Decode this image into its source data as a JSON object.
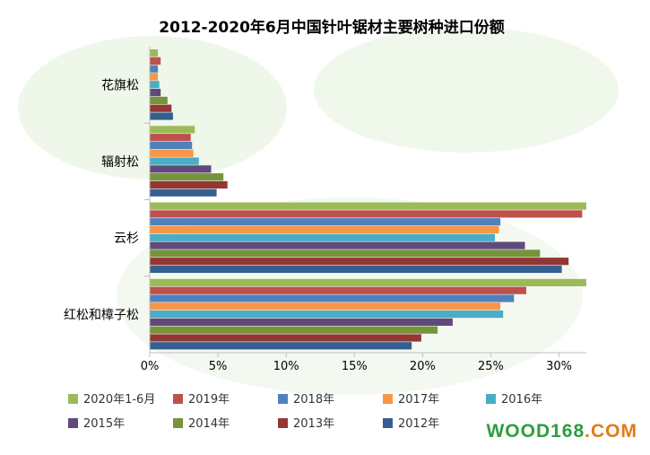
{
  "chart_data": {
    "type": "bar",
    "orientation": "horizontal",
    "title": "2012-2020年6月中国针叶锯材主要树种进口份额",
    "categories": [
      "花旗松",
      "辐射松",
      "云杉",
      "红松和樟子松"
    ],
    "xlim": [
      0,
      0.32
    ],
    "xticks": [
      "0%",
      "5%",
      "10%",
      "15%",
      "20%",
      "25%",
      "30%"
    ],
    "xtick_values": [
      0,
      0.05,
      0.1,
      0.15,
      0.2,
      0.25,
      0.3
    ],
    "grid": false,
    "legend_position": "bottom",
    "series": [
      {
        "name": "2020年1-6月",
        "color": "#9bbb59",
        "values": [
          0.006,
          0.033,
          0.32,
          0.32
        ]
      },
      {
        "name": "2019年",
        "color": "#c0504d",
        "values": [
          0.008,
          0.03,
          0.317,
          0.276
        ]
      },
      {
        "name": "2018年",
        "color": "#4f81bd",
        "values": [
          0.006,
          0.031,
          0.257,
          0.267
        ]
      },
      {
        "name": "2017年",
        "color": "#f79646",
        "values": [
          0.006,
          0.032,
          0.256,
          0.257
        ]
      },
      {
        "name": "2016年",
        "color": "#4bacc6",
        "values": [
          0.007,
          0.036,
          0.253,
          0.259
        ]
      },
      {
        "name": "2015年",
        "color": "#604a7b",
        "values": [
          0.008,
          0.045,
          0.275,
          0.222
        ]
      },
      {
        "name": "2014年",
        "color": "#77933c",
        "values": [
          0.013,
          0.054,
          0.286,
          0.211
        ]
      },
      {
        "name": "2013年",
        "color": "#943634",
        "values": [
          0.016,
          0.057,
          0.307,
          0.199
        ]
      },
      {
        "name": "2012年",
        "color": "#365f91",
        "values": [
          0.017,
          0.049,
          0.302,
          0.192
        ]
      }
    ]
  },
  "watermark": {
    "part1": "WOOD168",
    "part2": ".COM"
  }
}
